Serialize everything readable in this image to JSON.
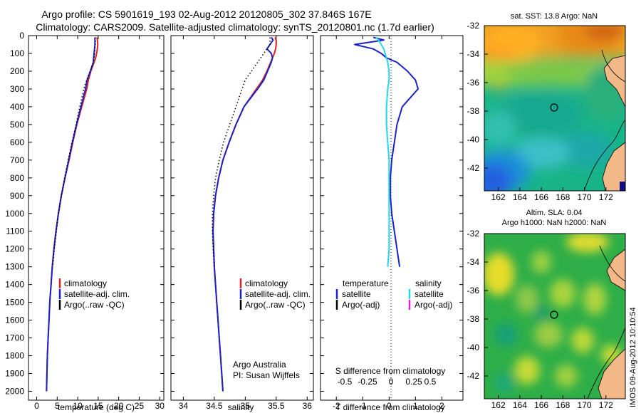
{
  "header": {
    "line1": "Argo profile: CS 5901619_193 02-Aug-2012 20120805_302 37.846S 167E",
    "line2": "Climatology: CARS2009. Satellite-adjusted climatology: synTS_20120801.nc (1.7d earlier)"
  },
  "colors": {
    "climatology": "#e02020",
    "satellite": "#1a22c8",
    "argo": "#000000",
    "sat_salinity": "#22d8e8",
    "argo_adj_salinity": "#e020e0",
    "land": "#f2b888"
  },
  "depth_ticks": [
    "0",
    "100",
    "200",
    "300",
    "400",
    "500",
    "600",
    "700",
    "800",
    "900",
    "1000",
    "1100",
    "1200",
    "1300",
    "1400",
    "1500",
    "1600",
    "1700",
    "1800",
    "1900",
    "2000"
  ],
  "depth_values": [
    10,
    25,
    50,
    75,
    100,
    125,
    150,
    200,
    250,
    300,
    400,
    500,
    600,
    700,
    800,
    900,
    1000,
    1100,
    1200,
    1300,
    1400,
    1500,
    1600,
    1700,
    1800,
    1900,
    2000
  ],
  "chart_data": [
    {
      "type": "line",
      "xlabel": "temperature (deg C)",
      "xticks": [
        "0",
        "5",
        "10",
        "15",
        "20",
        "25",
        "30"
      ],
      "xlim": [
        -2,
        31
      ],
      "ylim": [
        2050,
        0
      ],
      "legend": [
        "climatology",
        "satellite-adj. clim.",
        "Argo(..raw -QC)"
      ],
      "series": [
        {
          "name": "climatology",
          "x": [
            14.7,
            14.8,
            14.9,
            14.8,
            14.6,
            14.4,
            14.0,
            13.2,
            12.6,
            12.2,
            11.0,
            9.8,
            8.8,
            7.9,
            6.9,
            6.0,
            5.3,
            4.7,
            4.2,
            3.8,
            3.5,
            3.2,
            3.0,
            2.8,
            2.6,
            2.5,
            2.4
          ],
          "y": [
            10,
            25,
            50,
            75,
            100,
            125,
            150,
            200,
            250,
            300,
            400,
            500,
            600,
            700,
            800,
            900,
            1000,
            1100,
            1200,
            1300,
            1400,
            1500,
            1600,
            1700,
            1800,
            1900,
            2000
          ]
        },
        {
          "name": "satellite-adj. clim.",
          "x": [
            14.2,
            14.2,
            14.2,
            14.1,
            14.0,
            13.9,
            13.8,
            13.1,
            12.3,
            11.9,
            10.8,
            9.7,
            8.7,
            7.8,
            6.9,
            6.0,
            5.3,
            4.7,
            4.2,
            3.8,
            3.5,
            3.2,
            3.0,
            2.8,
            2.6,
            2.5,
            2.4
          ],
          "y": [
            10,
            25,
            50,
            75,
            100,
            125,
            150,
            200,
            250,
            300,
            400,
            500,
            600,
            700,
            800,
            900,
            1000,
            1100,
            1200,
            1300,
            1400,
            1500,
            1600,
            1700,
            1800,
            1900,
            2000
          ]
        },
        {
          "name": "Argo(..raw -QC)",
          "x": [
            14.3,
            14.3,
            14.3,
            14.2,
            14.1,
            14.0,
            13.8,
            13.0,
            12.2,
            11.5,
            10.5,
            9.6,
            8.6,
            7.7,
            6.8,
            6.0,
            5.3,
            4.8,
            4.3,
            3.9
          ],
          "y": [
            10,
            25,
            50,
            75,
            100,
            125,
            150,
            200,
            250,
            300,
            400,
            500,
            600,
            700,
            800,
            900,
            1000,
            1100,
            1200,
            1300
          ]
        }
      ]
    },
    {
      "type": "line",
      "xlabel": "salinity",
      "xticks": [
        "34",
        "34.5",
        "35",
        "35.5",
        "36"
      ],
      "xlim": [
        33.8,
        36.1
      ],
      "ylim": [
        2050,
        0
      ],
      "legend": [
        "climatology",
        "satellite-adj. clim.",
        "Argo(..raw -QC)"
      ],
      "annotation": [
        "Argo Australia",
        "PI: Susan Wijffels"
      ],
      "series": [
        {
          "name": "climatology",
          "x": [
            35.48,
            35.5,
            35.5,
            35.49,
            35.47,
            35.44,
            35.41,
            35.35,
            35.28,
            35.18,
            34.98,
            34.85,
            34.74,
            34.64,
            34.57,
            34.52,
            34.49,
            34.48,
            34.49,
            34.5,
            34.52,
            34.54,
            34.56,
            34.58,
            34.6,
            34.62,
            34.64
          ],
          "y": [
            10,
            25,
            50,
            75,
            100,
            125,
            150,
            200,
            250,
            300,
            400,
            500,
            600,
            700,
            800,
            900,
            1000,
            1100,
            1200,
            1300,
            1400,
            1500,
            1600,
            1700,
            1800,
            1900,
            2000
          ]
        },
        {
          "name": "satellite-adj. clim.",
          "x": [
            35.42,
            35.45,
            35.4,
            35.35,
            35.42,
            35.44,
            35.42,
            35.36,
            35.3,
            35.2,
            34.98,
            34.85,
            34.74,
            34.64,
            34.57,
            34.52,
            34.49,
            34.48,
            34.49,
            34.5,
            34.52,
            34.54,
            34.56,
            34.58,
            34.6,
            34.62,
            34.64
          ],
          "y": [
            10,
            25,
            50,
            75,
            100,
            125,
            150,
            200,
            250,
            300,
            400,
            500,
            600,
            700,
            800,
            900,
            1000,
            1100,
            1200,
            1300,
            1400,
            1500,
            1600,
            1700,
            1800,
            1900,
            2000
          ]
        },
        {
          "name": "Argo(..raw -QC)",
          "x": [
            35.4,
            35.4,
            35.4,
            35.35,
            35.3,
            35.25,
            35.2,
            35.1,
            35.0,
            34.95,
            34.85,
            34.75,
            34.65,
            34.58,
            34.52,
            34.49,
            34.47,
            34.47,
            34.48,
            34.5
          ],
          "y": [
            10,
            25,
            50,
            75,
            100,
            125,
            150,
            200,
            250,
            300,
            400,
            500,
            600,
            700,
            800,
            900,
            1000,
            1100,
            1200,
            1300
          ]
        }
      ]
    },
    {
      "type": "line",
      "xlabel": "T difference from climatology",
      "top_label": "S difference from climatology",
      "xticks": [
        "-2",
        "-1",
        "0",
        "1",
        "2"
      ],
      "s_ticks": [
        "-0.5",
        "-0.25",
        "0",
        "0.25",
        "0.5"
      ],
      "xlim": [
        -2.6,
        2.8
      ],
      "ylim": [
        2050,
        0
      ],
      "legend_headers": [
        "temperature",
        "salinity"
      ],
      "legend": [
        "satellite",
        "Argo(-adj)",
        "satellite",
        "Argo(-adj)"
      ],
      "series": [
        {
          "name": "satellite",
          "x": [
            -0.6,
            -0.2,
            -1.3,
            -0.6,
            -0.3,
            -0.1,
            0.3,
            0.7,
            1.0,
            1.1,
            0.5,
            0.3,
            0.2,
            0.1,
            0.05,
            0.05,
            0.1,
            0.2,
            0.3,
            0.4
          ],
          "y": [
            10,
            25,
            50,
            75,
            100,
            125,
            150,
            200,
            250,
            300,
            400,
            500,
            600,
            700,
            800,
            900,
            1000,
            1100,
            1200,
            1300
          ]
        },
        {
          "name": "satellite",
          "x": [
            -0.5,
            -0.4,
            -0.3,
            -0.2,
            -0.15,
            -0.1,
            -0.05,
            0.0,
            0.0,
            -0.05,
            -0.1,
            -0.1,
            -0.05,
            0.0,
            0.0,
            0.0,
            0.0,
            0.0,
            0.0,
            -0.05
          ],
          "y": [
            10,
            25,
            50,
            75,
            100,
            125,
            150,
            200,
            250,
            300,
            400,
            500,
            600,
            700,
            800,
            900,
            1000,
            1100,
            1200,
            1300
          ]
        }
      ]
    }
  ],
  "maps": {
    "sst": {
      "title": "sat. SST: 13.8 Argo: NaN",
      "yticks": [
        "-32",
        "-34",
        "-36",
        "-38",
        "-40",
        "-42"
      ]
    },
    "sla": {
      "title1": "Altim. SLA: 0.04",
      "title2": "Argo h1000: NaN h2000: NaN",
      "yticks": [
        "-32",
        "-34",
        "-36",
        "-38",
        "-40",
        "-42"
      ],
      "xticks": [
        "162",
        "164",
        "166",
        "168",
        "170",
        "172"
      ]
    }
  },
  "footer": {
    "stamp": "IMOS 09-Aug-2012 10:10:54"
  }
}
